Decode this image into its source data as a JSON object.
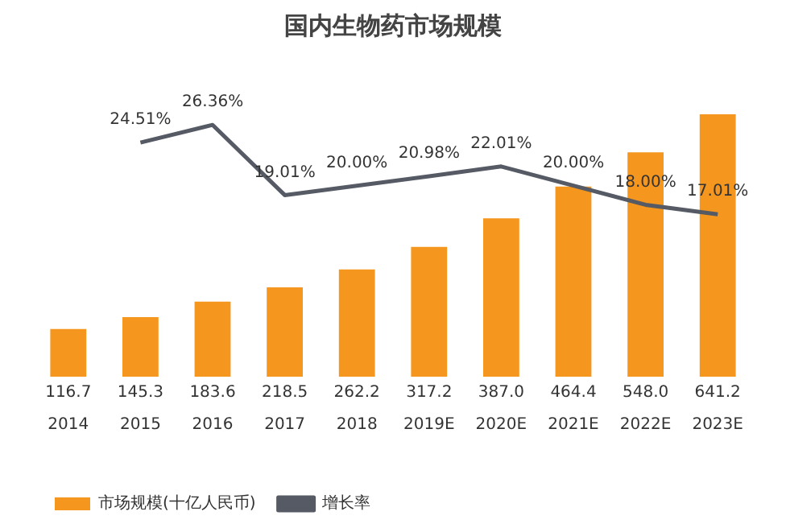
{
  "chart_data": {
    "type": "bar",
    "title": "国内生物药市场规模",
    "categories": [
      "2014",
      "2015",
      "2016",
      "2017",
      "2018",
      "2019E",
      "2020E",
      "2021E",
      "2022E",
      "2023E"
    ],
    "series": [
      {
        "name": "市场规模(十亿人民币)",
        "color": "#f5961e",
        "values": [
          116.7,
          145.3,
          183.6,
          218.5,
          262.2,
          317.2,
          387.0,
          464.4,
          548.0,
          641.2
        ],
        "value_labels": [
          "116.7",
          "145.3",
          "183.6",
          "218.5",
          "262.2",
          "317.2",
          "387.0",
          "464.4",
          "548.0",
          "641.2"
        ]
      },
      {
        "name": "增长率",
        "type": "line",
        "axis": "y2",
        "color": "#555a64",
        "values": [
          null,
          24.51,
          26.36,
          19.01,
          20.0,
          20.98,
          22.01,
          20.0,
          18.0,
          17.01
        ],
        "value_labels": [
          null,
          "24.51%",
          "26.36%",
          "19.01%",
          "20.00%",
          "20.98%",
          "22.01%",
          "20.00%",
          "18.00%",
          "17.01%"
        ]
      }
    ],
    "legend": "bottom left",
    "tick_labels": "x",
    "grid": false,
    "marker": "none"
  }
}
